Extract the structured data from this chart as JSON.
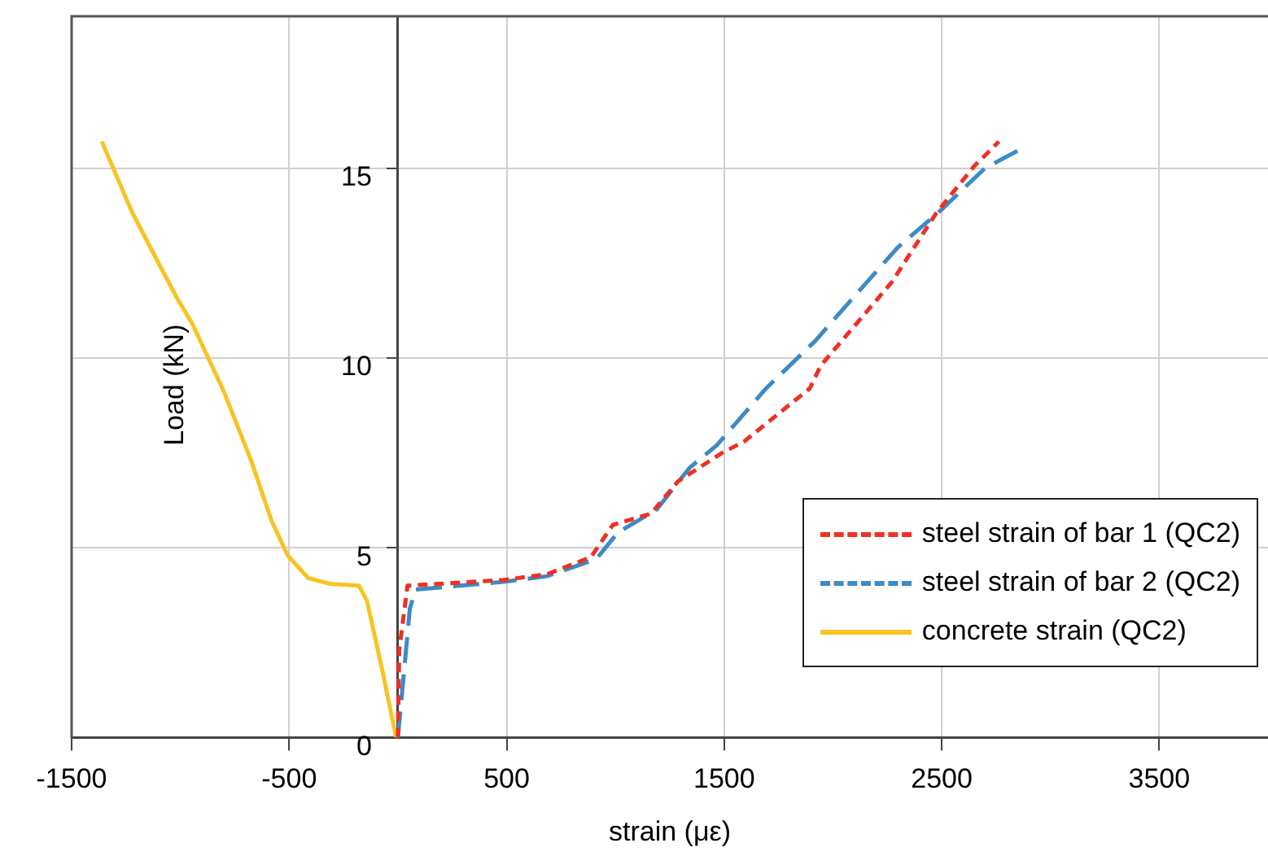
{
  "chart_data": {
    "type": "line",
    "xlabel": "strain (με)",
    "ylabel": "Load (kN)",
    "xlim": [
      -1500,
      4000
    ],
    "xticks": [
      -1500,
      -500,
      500,
      1500,
      2500,
      3500
    ],
    "ylim": [
      0,
      19
    ],
    "yticks": [
      0,
      5,
      10,
      15
    ],
    "grid": true,
    "legend": "bottom right",
    "marker": "none",
    "series": [
      {
        "name": "steel strain of bar 1 (QC2)",
        "color": "#ee3124",
        "line_style": "dotted",
        "x": [
          0,
          6,
          44,
          485,
          685,
          887,
          988,
          1164,
          1288,
          1491,
          1592,
          1894,
          1944,
          2271,
          2473,
          2649,
          2763
        ],
        "values": [
          0,
          2.3,
          4.0,
          4.15,
          4.3,
          4.75,
          5.6,
          5.9,
          6.75,
          7.5,
          7.8,
          9.2,
          9.8,
          12.0,
          13.8,
          15.05,
          15.7
        ]
      },
      {
        "name": "steel strain of bar 2 (QC2)",
        "color": "#3d8ac6",
        "line_style": "dashed",
        "x": [
          0,
          55,
          82,
          485,
          685,
          912,
          1011,
          1189,
          1340,
          1466,
          1693,
          1919,
          2018,
          2296,
          2498,
          2699,
          2863
        ],
        "values": [
          0,
          3.4,
          3.9,
          4.1,
          4.25,
          4.7,
          5.4,
          6.0,
          7.1,
          7.7,
          9.2,
          10.45,
          11.1,
          12.9,
          13.9,
          15.0,
          15.5
        ]
      },
      {
        "name": "concrete strain (QC2)",
        "color": "#f7c423",
        "line_style": "solid",
        "x": [
          -1361,
          -1223,
          -1128,
          -1018,
          -945,
          -799,
          -675,
          -580,
          -507,
          -412,
          -310,
          -179,
          -142,
          -69,
          -10,
          0
        ],
        "values": [
          15.7,
          13.85,
          12.8,
          11.6,
          10.9,
          9.1,
          7.3,
          5.7,
          4.8,
          4.2,
          4.05,
          4.0,
          3.6,
          1.7,
          0.05,
          0
        ]
      }
    ]
  }
}
